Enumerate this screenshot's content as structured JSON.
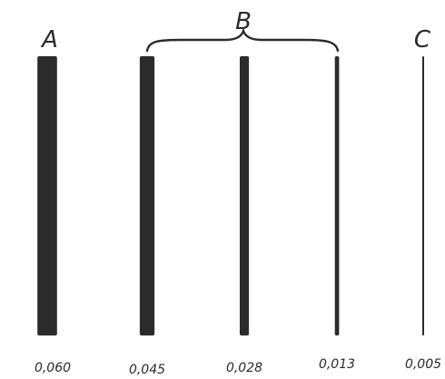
{
  "groups": {
    "a": {
      "label": "A"
    },
    "b": {
      "label": "B"
    },
    "c": {
      "label": "C"
    }
  },
  "bars": [
    {
      "value": "0,060",
      "thickness": 0.06
    },
    {
      "value": "0,045",
      "thickness": 0.045
    },
    {
      "value": "0,028",
      "thickness": 0.028
    },
    {
      "value": "0,013",
      "thickness": 0.013
    },
    {
      "value": "0,005",
      "thickness": 0.005
    }
  ],
  "colors": {
    "ink": "#2b2b2b",
    "background": "#ffffff"
  }
}
